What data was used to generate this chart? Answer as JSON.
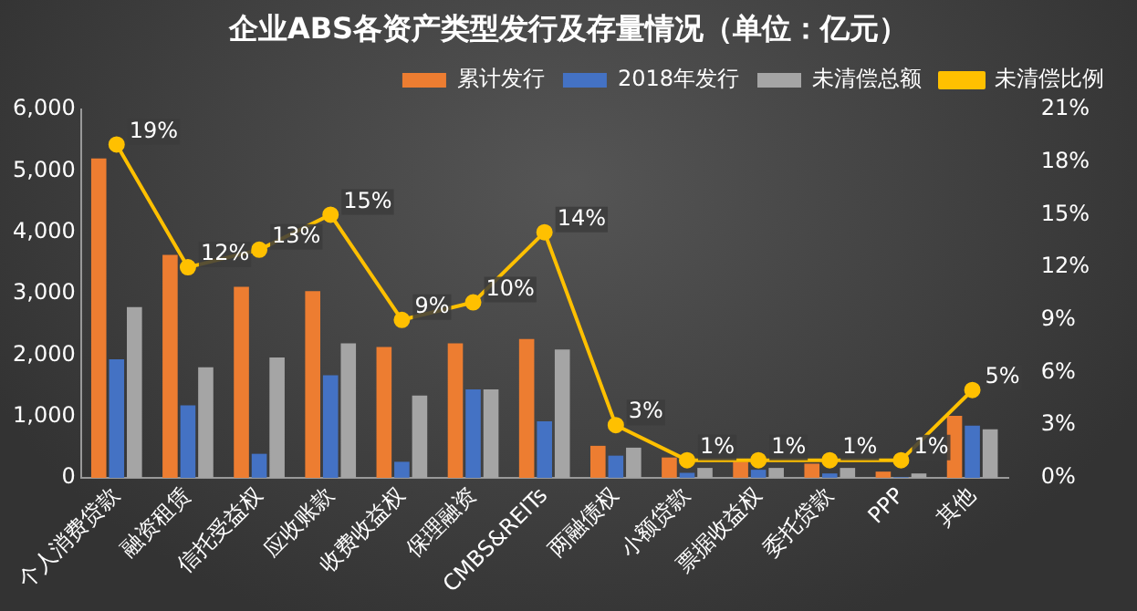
{
  "chart_data": {
    "type": "bar",
    "title": "企业ABS各资产类型发行及存量情况（单位：亿元）",
    "categories": [
      "个人消费贷款",
      "融资租赁",
      "信托受益权",
      "应收账款",
      "收费收益权",
      "保理融资",
      "CMBS&REITs",
      "两融债权",
      "小额贷款",
      "票据收益权",
      "委托贷款",
      "PPP",
      "其他"
    ],
    "series": [
      {
        "name": "累计发行",
        "color": "#ed7d31",
        "values": [
          5200,
          3630,
          3110,
          3040,
          2130,
          2190,
          2260,
          520,
          330,
          260,
          230,
          100,
          1010
        ]
      },
      {
        "name": "2018年发行",
        "color": "#4472c4",
        "values": [
          1930,
          1180,
          390,
          1670,
          260,
          1440,
          920,
          360,
          80,
          130,
          70,
          10,
          850
        ]
      },
      {
        "name": "未清偿总额",
        "color": "#a5a5a5",
        "values": [
          2780,
          1800,
          1960,
          2190,
          1340,
          1440,
          2090,
          490,
          160,
          160,
          160,
          70,
          790
        ]
      },
      {
        "name": "未清偿比例",
        "type": "line",
        "axis": "y2",
        "color": "#ffc000",
        "values": [
          19,
          12,
          13,
          15,
          9,
          10,
          14,
          3,
          1,
          1,
          1,
          1,
          5
        ],
        "value_labels": [
          "19%",
          "12%",
          "13%",
          "15%",
          "9%",
          "10%",
          "14%",
          "3%",
          "1%",
          "1%",
          "1%",
          "1%",
          "5%"
        ]
      }
    ],
    "ylim": [
      0,
      6000
    ],
    "yticks": [
      0,
      {
        "value": 1000,
        "label": "1,000"
      },
      {
        "value": 2000,
        "label": "2,000"
      },
      {
        "value": 3000,
        "label": "3,000"
      },
      {
        "value": 4000,
        "label": "4,000"
      },
      {
        "value": 5000,
        "label": "5,000"
      },
      {
        "value": 6000,
        "label": "6,000"
      }
    ],
    "y2lim": [
      0,
      21
    ],
    "y2ticks": [
      {
        "value": 0,
        "label": "0%"
      },
      {
        "value": 3,
        "label": "3%"
      },
      {
        "value": 6,
        "label": "6%"
      },
      {
        "value": 9,
        "label": "9%"
      },
      {
        "value": 12,
        "label": "12%"
      },
      {
        "value": 15,
        "label": "15%"
      },
      {
        "value": 18,
        "label": "18%"
      },
      {
        "value": 21,
        "label": "21%"
      }
    ],
    "grid": false,
    "legend": "top right",
    "marker": "circle",
    "line_style": "solid"
  }
}
